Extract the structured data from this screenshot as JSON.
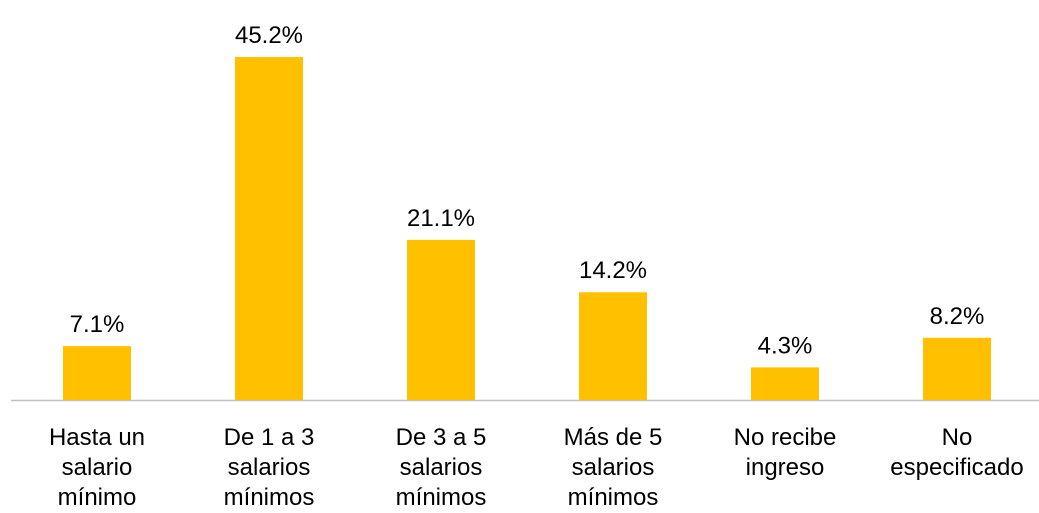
{
  "chart_data": {
    "type": "bar",
    "categories": [
      "Hasta un salario mínimo",
      "De 1 a 3 salarios mínimos",
      "De 3 a 5 salarios mínimos",
      "Más de 5 salarios mínimos",
      "No recibe ingreso",
      "No especificado"
    ],
    "values": [
      7.1,
      45.2,
      21.1,
      14.2,
      4.3,
      8.2
    ],
    "value_labels": [
      "7.1%",
      "45.2%",
      "21.1%",
      "14.2%",
      "4.3%",
      "8.2%"
    ],
    "color": "#ffc000"
  }
}
